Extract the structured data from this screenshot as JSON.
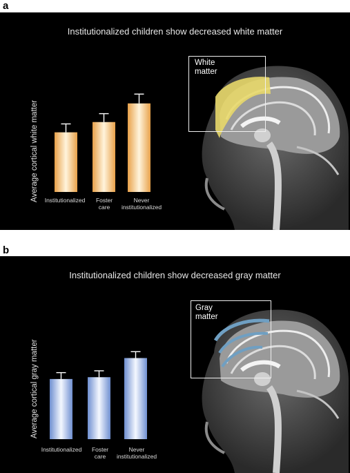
{
  "panels": [
    {
      "letter": "a",
      "title": "Institutionalized children show decreased white matter",
      "roi_label": "White\nmatter",
      "roi_color": "#e8d86a",
      "bar_color_light": "#fff4dc",
      "bar_color_dark": "#e8a14a",
      "y_axis_scale": "none"
    },
    {
      "letter": "b",
      "title": "Institutionalized children show decreased gray matter",
      "roi_label": "Gray\nmatter",
      "roi_color": "#6f9fc2",
      "bar_color_light": "#f4f8ff",
      "bar_color_dark": "#6f8fd0",
      "y_axis_scale": "none"
    }
  ],
  "chart_data": [
    {
      "type": "bar",
      "title": "Institutionalized children show decreased white matter",
      "ylabel": "Average cortical white matter",
      "xlabel": "",
      "categories": [
        "Institutionalized",
        "Foster\ncare",
        "Never\ninstitutionalized"
      ],
      "values": [
        0.64,
        0.75,
        0.95
      ],
      "error": [
        0.09,
        0.09,
        0.1
      ],
      "ylim": [
        0,
        1.2
      ],
      "grid": false
    },
    {
      "type": "bar",
      "title": "Institutionalized children show decreased gray matter",
      "ylabel": "Average cortical gray matter",
      "xlabel": "",
      "categories": [
        "Institutionalized",
        "Foster\ncare",
        "Never\ninstitutionalized"
      ],
      "values": [
        0.66,
        0.68,
        0.89
      ],
      "error": [
        0.07,
        0.07,
        0.07
      ],
      "ylim": [
        0,
        1.2
      ],
      "grid": false
    }
  ]
}
